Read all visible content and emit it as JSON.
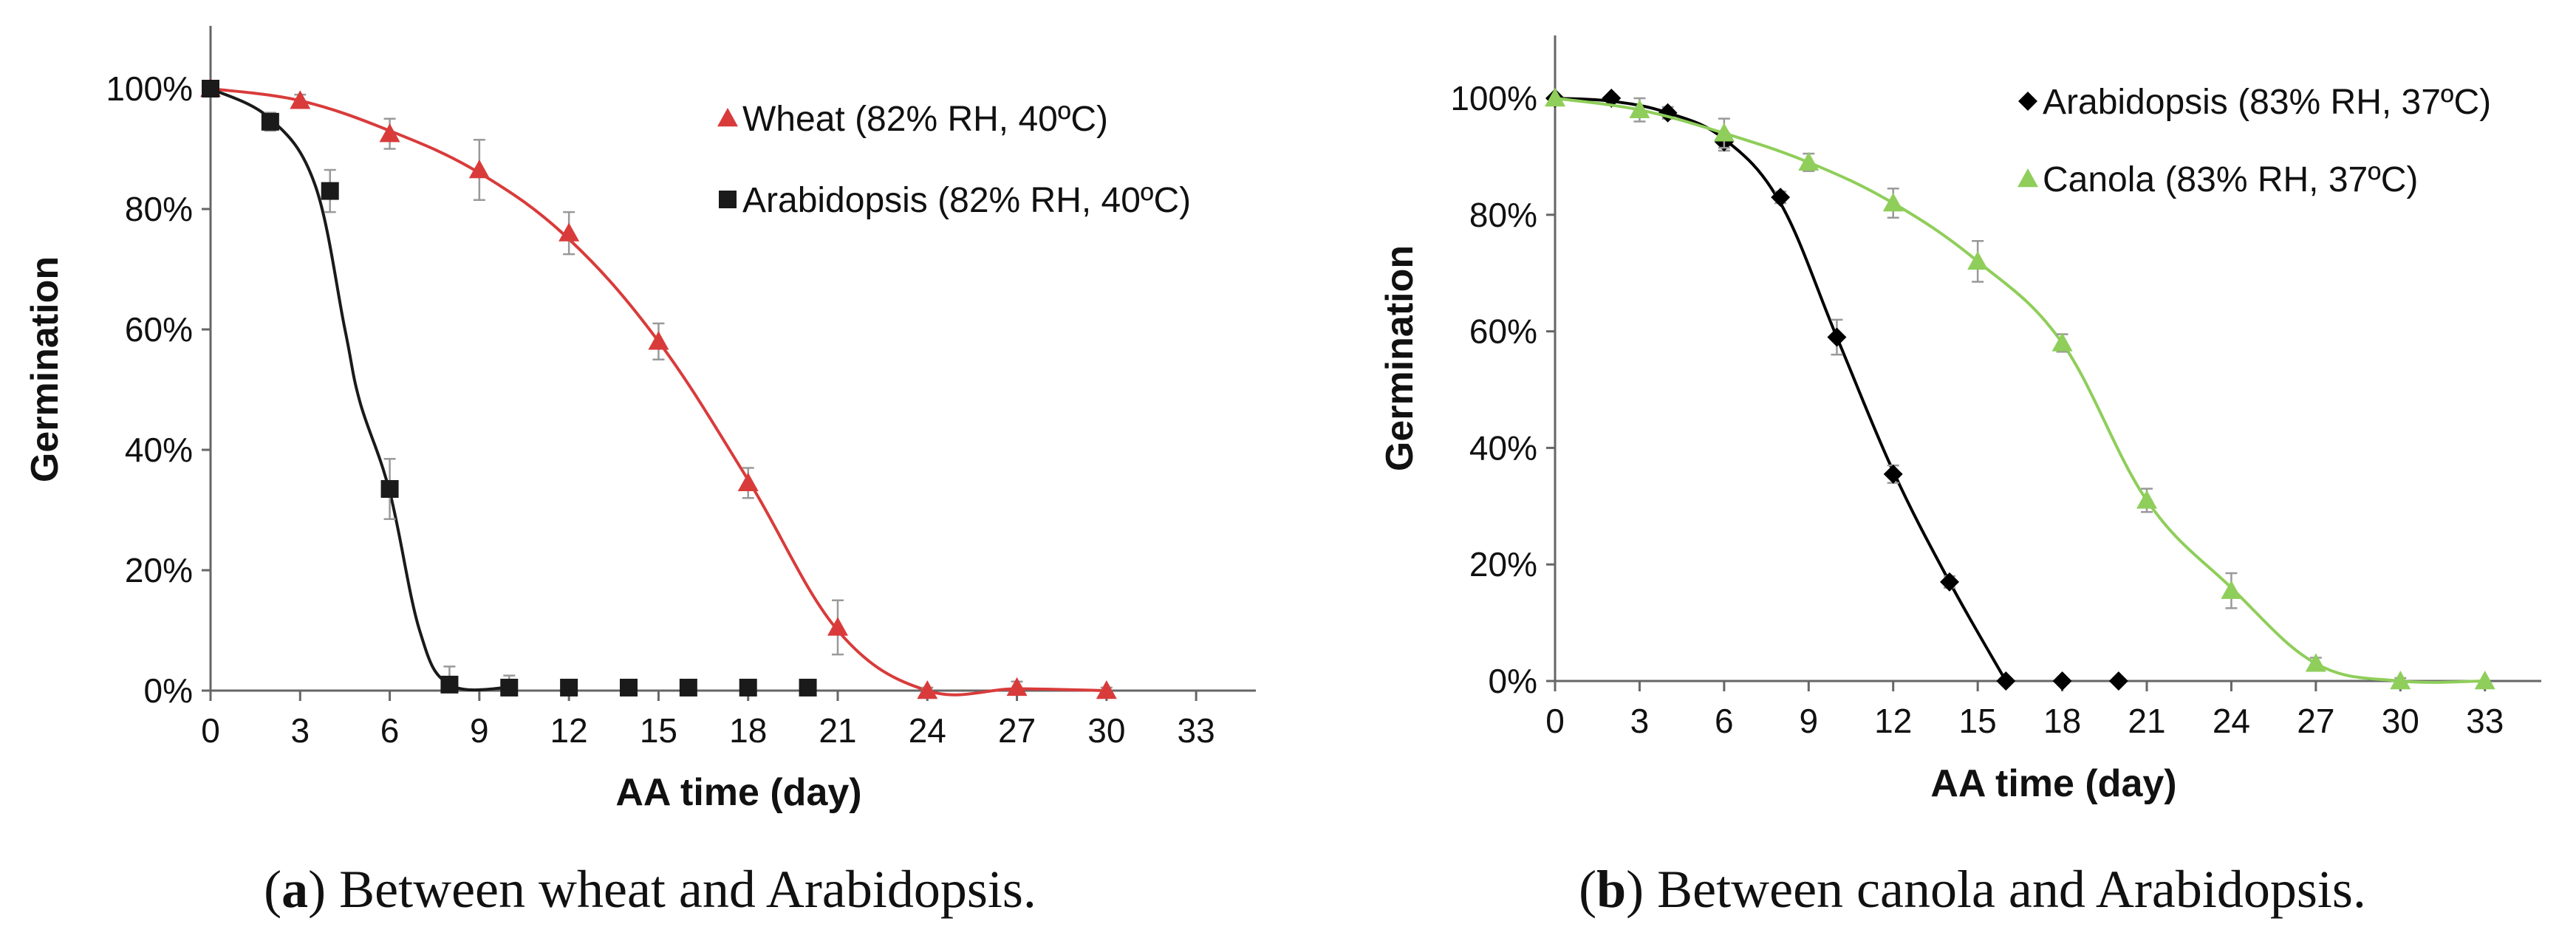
{
  "chart_data": [
    {
      "type": "line",
      "caption": {
        "letter": "a",
        "text": " Between wheat and Arabidopsis."
      },
      "xlabel": "AA time (day)",
      "ylabel": "Germination",
      "xlim": [
        0,
        35
      ],
      "ylim": [
        0,
        100
      ],
      "xticks": [
        0,
        3,
        6,
        9,
        12,
        15,
        18,
        21,
        24,
        27,
        30,
        33
      ],
      "yticks": [
        0,
        20,
        40,
        60,
        80,
        100
      ],
      "ytick_suffix": "%",
      "grid": false,
      "legend_position": "top-right",
      "series": [
        {
          "name": "Wheat (82% RH, 40ºC)",
          "color": "#d93b3b",
          "marker": "triangle",
          "x": [
            0,
            3,
            6,
            9,
            12,
            15,
            18,
            21,
            24,
            27,
            30
          ],
          "y": [
            100,
            98,
            92.5,
            86.5,
            76,
            58,
            34.5,
            10.5,
            0,
            0.5,
            0
          ],
          "err": [
            0,
            1,
            2.5,
            5,
            3.5,
            3,
            2.5,
            4.5,
            0.5,
            1,
            0.5
          ],
          "curve_x": [
            0,
            3,
            6,
            9,
            12,
            15,
            18,
            21,
            24,
            27,
            30
          ],
          "curve_y": [
            100,
            98,
            93,
            86,
            75,
            58,
            35,
            10,
            0,
            0.3,
            0
          ]
        },
        {
          "name": "Arabidopsis (82% RH, 40ºC)",
          "color": "#1a1a1a",
          "marker": "square",
          "x": [
            0,
            2,
            4,
            6,
            8,
            10,
            12,
            14,
            16,
            18,
            20
          ],
          "y": [
            100,
            94.5,
            83,
            33.5,
            1,
            0.5,
            0.5,
            0.5,
            0.5,
            0.5,
            0.5
          ],
          "err": [
            0,
            1.5,
            3.5,
            5,
            3,
            2,
            0,
            0,
            0,
            0,
            0
          ],
          "curve_x": [
            0,
            2,
            3.5,
            4.5,
            5,
            6,
            7,
            8,
            10
          ],
          "curve_y": [
            100,
            95,
            84,
            60,
            48,
            33,
            10,
            1,
            0.5
          ]
        }
      ]
    },
    {
      "type": "line",
      "caption": {
        "letter": "b",
        "text": " Between canola and Arabidopsis."
      },
      "xlabel": "AA time (day)",
      "ylabel": "Germination",
      "xlim": [
        0,
        35
      ],
      "ylim": [
        0,
        100
      ],
      "xticks": [
        0,
        3,
        6,
        9,
        12,
        15,
        18,
        21,
        24,
        27,
        30,
        33
      ],
      "yticks": [
        0,
        20,
        40,
        60,
        80,
        100
      ],
      "ytick_suffix": "%",
      "grid": false,
      "legend_position": "top-right",
      "series": [
        {
          "name": "Arabidopsis (83% RH, 37ºC)",
          "color": "#000000",
          "marker": "diamond",
          "x": [
            0,
            2,
            4,
            6,
            8,
            10,
            12,
            14,
            16,
            18,
            20
          ],
          "y": [
            100,
            100,
            97.5,
            92.5,
            83,
            59,
            35.5,
            17,
            0,
            0,
            0
          ],
          "err": [
            0,
            0.5,
            1,
            1.5,
            1,
            3,
            1.5,
            1,
            0,
            0,
            0
          ],
          "curve_x": [
            0,
            2,
            4,
            6,
            8,
            10,
            12,
            14,
            16
          ],
          "curve_y": [
            100,
            99.5,
            97.5,
            93,
            82,
            59,
            36,
            17,
            0
          ]
        },
        {
          "name": "Canola (83% RH, 37ºC)",
          "color": "#8fce5a",
          "marker": "triangle",
          "x": [
            0,
            3,
            6,
            9,
            12,
            15,
            18,
            21,
            24,
            27,
            30,
            33
          ],
          "y": [
            100,
            98,
            94,
            89,
            82,
            72,
            58,
            31,
            15.5,
            3,
            0,
            0
          ],
          "err": [
            0,
            2,
            2.5,
            1.5,
            2.5,
            3.5,
            1.5,
            2,
            3,
            1,
            0.5,
            0
          ],
          "curve_x": [
            0,
            3,
            6,
            9,
            12,
            15,
            18,
            21,
            24,
            27,
            30,
            33
          ],
          "curve_y": [
            100,
            98,
            94,
            89,
            82,
            72,
            58,
            31,
            16,
            3,
            0,
            0
          ]
        }
      ]
    }
  ]
}
